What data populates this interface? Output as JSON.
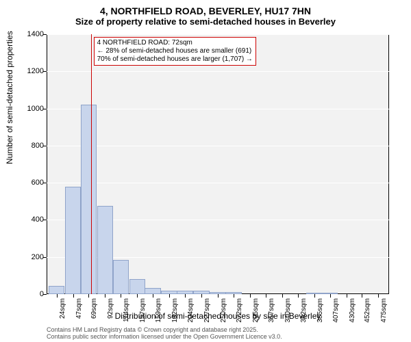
{
  "title": {
    "line1": "4, NORTHFIELD ROAD, BEVERLEY, HU17 7HN",
    "line2": "Size of property relative to semi-detached houses in Beverley"
  },
  "histogram": {
    "type": "histogram",
    "xlim": [
      10,
      490
    ],
    "ylim": [
      0,
      1400
    ],
    "ytick_step": 200,
    "yticks": [
      0,
      200,
      400,
      600,
      800,
      1000,
      1200,
      1400
    ],
    "xticks": [
      24,
      47,
      69,
      92,
      114,
      137,
      159,
      182,
      204,
      227,
      250,
      272,
      295,
      317,
      340,
      362,
      385,
      407,
      430,
      452,
      475
    ],
    "xtick_suffix": "sqm",
    "bar_width": 22.5,
    "bars": [
      {
        "x": 24,
        "count": 45
      },
      {
        "x": 47,
        "count": 580
      },
      {
        "x": 69,
        "count": 1020
      },
      {
        "x": 92,
        "count": 475
      },
      {
        "x": 114,
        "count": 185
      },
      {
        "x": 137,
        "count": 80
      },
      {
        "x": 159,
        "count": 35
      },
      {
        "x": 182,
        "count": 20
      },
      {
        "x": 204,
        "count": 20
      },
      {
        "x": 227,
        "count": 18
      },
      {
        "x": 250,
        "count": 10
      },
      {
        "x": 272,
        "count": 10
      },
      {
        "x": 295,
        "count": 0
      },
      {
        "x": 317,
        "count": 0
      },
      {
        "x": 340,
        "count": 0
      },
      {
        "x": 362,
        "count": 0
      },
      {
        "x": 385,
        "count": 3
      },
      {
        "x": 407,
        "count": 3
      },
      {
        "x": 430,
        "count": 0
      },
      {
        "x": 452,
        "count": 0
      },
      {
        "x": 475,
        "count": 0
      }
    ],
    "marker_x": 72,
    "bar_fill": "#c8d5ec",
    "bar_stroke": "#8fa3c9",
    "plot_bg": "#f2f2f2",
    "grid_color": "#ffffff",
    "marker_color": "#cc0000",
    "ylabel": "Number of semi-detached properties",
    "xlabel": "Distribution of semi-detached houses by size in Beverley",
    "label_fontsize": 12,
    "tick_fontsize": 11
  },
  "annotation": {
    "line1": "4 NORTHFIELD ROAD: 72sqm",
    "line2": "← 28% of semi-detached houses are smaller (691)",
    "line3": "70% of semi-detached houses are larger (1,707) →",
    "border_color": "#cc0000",
    "bg_color": "#ffffff",
    "fontsize": 10
  },
  "footer": {
    "line1": "Contains HM Land Registry data © Crown copyright and database right 2025.",
    "line2": "Contains public sector information licensed under the Open Government Licence v3.0.",
    "color": "#555555",
    "fontsize": 9
  }
}
